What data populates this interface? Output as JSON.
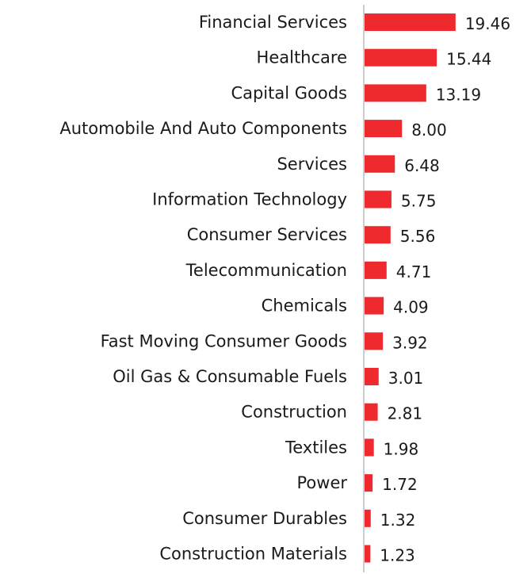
{
  "chart_data": {
    "type": "bar",
    "orientation": "horizontal",
    "categories": [
      "Financial Services",
      "Healthcare",
      "Capital Goods",
      "Automobile And Auto Components",
      "Services",
      "Information Technology",
      "Consumer Services",
      "Telecommunication",
      "Chemicals",
      "Fast Moving Consumer Goods",
      "Oil Gas & Consumable Fuels",
      "Construction",
      "Textiles",
      "Power",
      "Consumer Durables",
      "Construction Materials"
    ],
    "values": [
      19.46,
      15.44,
      13.19,
      8.0,
      6.48,
      5.75,
      5.56,
      4.71,
      4.09,
      3.92,
      3.01,
      2.81,
      1.98,
      1.72,
      1.32,
      1.23
    ],
    "value_labels": [
      "19.46",
      "15.44",
      "13.19",
      "8.00",
      "6.48",
      "5.75",
      "5.56",
      "4.71",
      "4.09",
      "3.92",
      "3.01",
      "2.81",
      "1.98",
      "1.72",
      "1.32",
      "1.23"
    ],
    "bar_color": "#ee2a2f",
    "axis_color": "#cccccc",
    "title": "",
    "xlabel": "",
    "ylabel": "",
    "grid": false,
    "legend": "none"
  }
}
